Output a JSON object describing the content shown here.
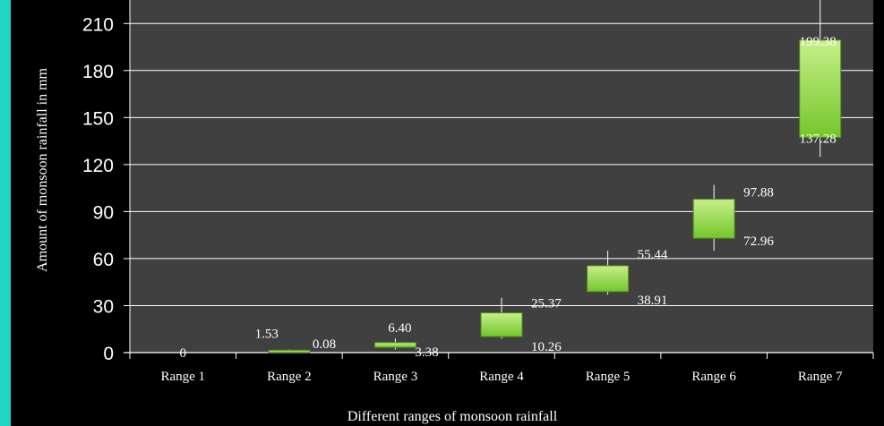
{
  "colors": {
    "page_background": "#1fd6c2",
    "panel_background": "#000000",
    "plot_background": "#404040",
    "gridline": "#ffffff",
    "box_fill_top": "#c6ef8a",
    "box_fill_bottom": "#74c62a",
    "box_stroke": "#4e8f16",
    "whisker": "#ffffff",
    "text": "#ffffff"
  },
  "chart_data": {
    "type": "candlestick",
    "xlabel": "Different  ranges of monsoon rainfall",
    "ylabel": "Amount  of monsoon  rainfall  in mm",
    "ylim": [
      0,
      225
    ],
    "yticks": [
      0,
      30,
      60,
      90,
      120,
      150,
      180,
      210
    ],
    "ytick_labels": [
      "0",
      "30",
      "60",
      "90",
      "120",
      "150",
      "180",
      "210"
    ],
    "grid": true,
    "categories": [
      "Range 1",
      "Range 2",
      "Range 3",
      "Range 4",
      "Range 5",
      "Range 6",
      "Range 7"
    ],
    "series": [
      {
        "low": [
          0,
          0,
          2,
          9,
          37,
          65,
          125
        ],
        "high": [
          0,
          2,
          9,
          35,
          65,
          107,
          225
        ],
        "box_low": [
          0,
          0.08,
          3.38,
          10.26,
          38.91,
          72.96,
          137.28
        ],
        "box_high": [
          0,
          1.53,
          6.4,
          25.37,
          55.44,
          97.88,
          199.38
        ]
      }
    ],
    "data_labels": [
      {
        "category": 0,
        "text": "0",
        "y": 0,
        "side": "center"
      },
      {
        "category": 1,
        "text": "1.53",
        "y": 1.53,
        "side": "left"
      },
      {
        "category": 1,
        "text": "0.08",
        "y": 0.08,
        "side": "right"
      },
      {
        "category": 2,
        "text": "6.40",
        "y": 6.4,
        "side": "above"
      },
      {
        "category": 2,
        "text": "3.38",
        "y": 3.38,
        "side": "right"
      },
      {
        "category": 3,
        "text": "25.37",
        "y": 25.37,
        "side": "right"
      },
      {
        "category": 3,
        "text": "10.26",
        "y": 10.26,
        "side": "right"
      },
      {
        "category": 4,
        "text": "55.44",
        "y": 55.44,
        "side": "right"
      },
      {
        "category": 4,
        "text": "38.91",
        "y": 38.91,
        "side": "right"
      },
      {
        "category": 5,
        "text": "97.88",
        "y": 97.88,
        "side": "right"
      },
      {
        "category": 5,
        "text": "72.96",
        "y": 72.96,
        "side": "right"
      },
      {
        "category": 6,
        "text": "199.38",
        "y": 199.38,
        "side": "left"
      },
      {
        "category": 6,
        "text": "137.28",
        "y": 137.28,
        "side": "left"
      }
    ]
  }
}
